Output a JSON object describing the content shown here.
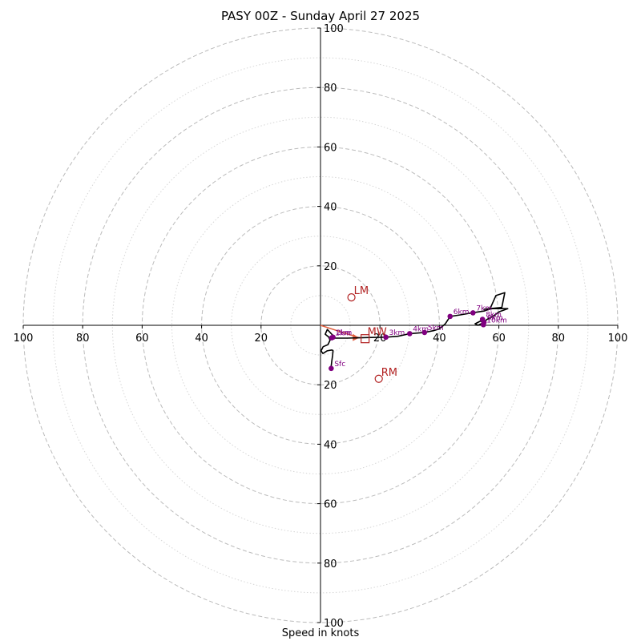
{
  "chart_data": {
    "type": "hodograph",
    "title": "PASY 00Z - Sunday April 27 2025",
    "xlabel": "Speed in knots",
    "axis_range": [
      -100,
      100
    ],
    "rings": [
      10,
      20,
      30,
      40,
      50,
      60,
      70,
      80,
      90,
      100
    ],
    "x_ticks": [
      "100",
      "80",
      "60",
      "40",
      "20",
      "20",
      "40",
      "60",
      "80",
      "100"
    ],
    "y_ticks": [
      "100",
      "80",
      "60",
      "40",
      "20",
      "20",
      "40",
      "60",
      "80",
      "100"
    ],
    "profile_u": [
      3.5,
      3.8,
      4.1,
      4.2,
      3.8,
      2.2,
      0.8,
      0.2,
      0.9,
      2.5,
      3.2,
      2.8,
      1.6,
      2.3,
      5.0,
      9.0,
      13.0,
      17.0,
      22.0,
      26.0,
      30.0,
      35.0,
      38.0,
      40.0,
      42.0,
      43.6,
      47.0,
      51.0,
      55.0,
      57.0,
      59.0,
      62.0,
      61.0,
      56.0,
      55.0,
      58.0,
      62.0,
      63.0,
      60.0,
      58.0,
      56.0,
      55.0,
      53.0,
      52.0,
      54.0,
      55.0
    ],
    "profile_v": [
      -14.5,
      -12.0,
      -10.0,
      -8.5,
      -8.3,
      -8.6,
      -9.5,
      -8.6,
      -7.2,
      -6.5,
      -5.0,
      -4.0,
      -3.0,
      -1.4,
      -4.3,
      -4.3,
      -4.2,
      -4.1,
      -4.0,
      -3.7,
      -2.8,
      -2.4,
      -1.8,
      -1.2,
      0.5,
      3.0,
      3.5,
      4.2,
      4.8,
      5.5,
      10.0,
      11.0,
      6.0,
      5.5,
      5.4,
      5.6,
      5.6,
      5.6,
      4.5,
      3.0,
      2.0,
      1.0,
      0.0,
      0.5,
      1.5,
      0.0
    ],
    "height_labels": [
      {
        "label": "Sfc",
        "u": 3.6,
        "v": -14.5
      },
      {
        "label": "1km",
        "u": 3.8,
        "v": -4.2
      },
      {
        "label": "2km",
        "u": 4.2,
        "v": -4.0
      },
      {
        "label": "3km",
        "u": 22.0,
        "v": -4.0
      },
      {
        "label": "4km",
        "u": 30.0,
        "v": -2.8
      },
      {
        "label": "5km",
        "u": 35.0,
        "v": -2.4
      },
      {
        "label": "6km",
        "u": 43.6,
        "v": 3.0
      },
      {
        "label": "7km",
        "u": 51.3,
        "v": 4.2
      },
      {
        "label": "8km",
        "u": 54.5,
        "v": 2.0
      },
      {
        "label": "9km",
        "u": 55.0,
        "v": 1.0
      },
      {
        "label": "10km",
        "u": 54.8,
        "v": 0.2
      }
    ],
    "motion_markers": [
      {
        "label": "LM",
        "u": 10.4,
        "v": 9.4,
        "shape": "circle"
      },
      {
        "label": "RM",
        "u": 19.6,
        "v": -18.0,
        "shape": "circle"
      },
      {
        "label": "MW",
        "u": 15.0,
        "v": -4.5,
        "shape": "square"
      }
    ],
    "shear_vector": {
      "from_u": 0.0,
      "from_v": 0.0,
      "to_u": 13.0,
      "to_v": -4.2
    },
    "colors": {
      "profile": "#000000",
      "points": "#800080",
      "markers": "#b22222",
      "grid": "#bbbbbb",
      "shear": "#e06040"
    }
  }
}
